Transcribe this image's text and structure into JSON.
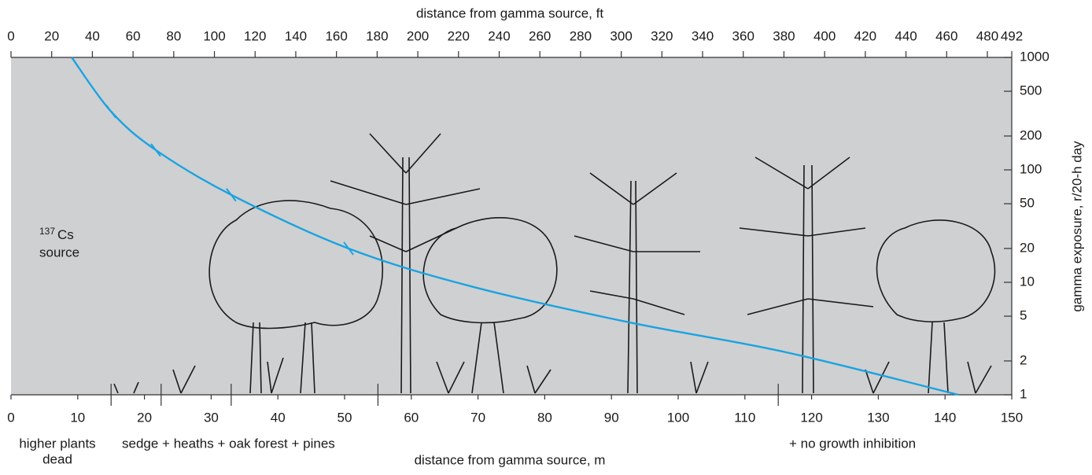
{
  "chart_data": {
    "type": "line",
    "title": "distance from gamma source, ft",
    "x_label": "distance from gamma source, m",
    "y_label": "gamma exposure, r/20-h day",
    "xlim": [
      0,
      150
    ],
    "xticks": [
      0,
      10,
      20,
      30,
      40,
      50,
      60,
      70,
      80,
      90,
      100,
      110,
      120,
      130,
      140,
      150
    ],
    "x2lim": [
      0,
      492
    ],
    "x2ticks": [
      0,
      20,
      40,
      60,
      80,
      100,
      120,
      140,
      160,
      180,
      200,
      220,
      240,
      260,
      280,
      300,
      320,
      340,
      360,
      380,
      400,
      420,
      440,
      460,
      480,
      492
    ],
    "ylim": [
      1,
      1000
    ],
    "yticks": [
      1,
      2,
      5,
      10,
      20,
      50,
      100,
      200,
      500,
      1000
    ],
    "y_scale": "log",
    "background": "#cfd0d2",
    "series": [
      {
        "color": "#1aa3e0",
        "x": [
          9.1,
          15,
          21.7,
          33,
          50.6,
          69,
          92.7,
          116,
          142
        ],
        "values": [
          1000,
          330,
          150,
          60,
          20,
          9.2,
          4.4,
          2.4,
          1
        ]
      }
    ],
    "curve_marks": {
      "x": [
        15,
        21.7,
        33,
        50.6
      ],
      "values": [
        330,
        150,
        60,
        20
      ]
    },
    "zone_boundaries": [
      15,
      22.5,
      33,
      55,
      115
    ],
    "source_label": {
      "isotope": "137",
      "element": "Cs",
      "text": "source"
    },
    "zone_labels": [
      "higher plants",
      "dead",
      "sedge + heaths + oak forest + pines",
      "+ no growth inhibition"
    ]
  }
}
